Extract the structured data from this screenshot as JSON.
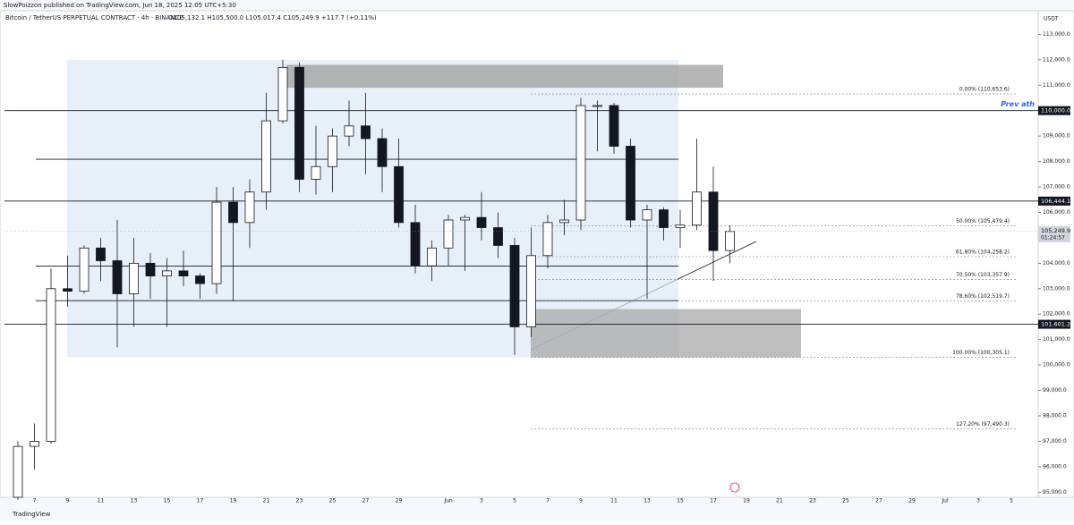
{
  "header": {
    "author_line": "SlowPoizzon published on TradingView.com, Jun 18, 2025 12:05 UTC+5:30",
    "footer": "TradingView"
  },
  "chart_data": {
    "type": "candlestick",
    "title": "Bitcoin / TetherUS PERPETUAL CONTRACT · 4h · BINANCE",
    "ohlc_text": "O105,132.1 H105,500.0 L105,017.4 C105,249.9 +117.7 (+0.11%)",
    "currency": "USDT",
    "categories": [
      null,
      "7",
      null,
      "9",
      null,
      "11",
      null,
      "13",
      null,
      "15",
      null,
      "17",
      null,
      "19",
      null,
      "21",
      null,
      "23",
      null,
      "25",
      null,
      "27",
      null,
      "29",
      null,
      null,
      "Jun",
      null,
      "3",
      null,
      "5",
      null,
      "7",
      null,
      "9",
      null,
      "11",
      null,
      "13",
      null,
      "15",
      null,
      "17",
      null,
      "19",
      null,
      "21",
      null,
      "23",
      null,
      "25",
      null,
      "27",
      null,
      "29",
      null,
      "Jul",
      null,
      "3",
      null,
      "5"
    ],
    "open": [
      94800,
      96800,
      97000,
      103000,
      102900,
      104600,
      104100,
      102800,
      104000,
      103500,
      103700,
      103500,
      103200,
      106400,
      105600,
      106800,
      109600,
      111700,
      107300,
      107800,
      109000,
      109400,
      108900,
      107800,
      105600,
      103900,
      104600,
      105700,
      105800,
      105400,
      104700,
      101500,
      104300,
      105600,
      105700,
      110200,
      110200,
      108600,
      105700,
      106100,
      105400,
      105500,
      106800,
      104500,
      null,
      null,
      null,
      null,
      null,
      null,
      null,
      null,
      null,
      null,
      null,
      null,
      null,
      null,
      null,
      null,
      null
    ],
    "high": [
      97000,
      97700,
      103800,
      104300,
      104700,
      105000,
      105700,
      105000,
      104400,
      104200,
      104500,
      103600,
      107000,
      107000,
      107300,
      110700,
      112000,
      111900,
      109400,
      109300,
      110400,
      110700,
      109300,
      108900,
      106300,
      104900,
      105900,
      105900,
      106800,
      106000,
      105000,
      105400,
      105900,
      106500,
      110500,
      110400,
      110300,
      108900,
      106300,
      106200,
      106100,
      108900,
      107800,
      105500,
      null,
      null,
      null,
      null,
      null,
      null,
      null,
      null,
      null,
      null,
      null,
      null,
      null,
      null,
      null,
      null,
      null
    ],
    "low": [
      94700,
      95900,
      96900,
      102300,
      102800,
      103300,
      100700,
      101500,
      102600,
      101500,
      103100,
      102600,
      102800,
      102500,
      104600,
      106100,
      109500,
      106800,
      106700,
      106800,
      108600,
      107500,
      106800,
      105400,
      103600,
      103300,
      103900,
      103700,
      104900,
      104200,
      100400,
      101100,
      103800,
      105100,
      105300,
      108400,
      108300,
      105400,
      102600,
      104900,
      104600,
      105300,
      103300,
      104000,
      null,
      null,
      null,
      null,
      null,
      null,
      null,
      null,
      null,
      null,
      null,
      null,
      null,
      null,
      null,
      null,
      null
    ],
    "close": [
      96800,
      97000,
      103000,
      102900,
      104600,
      104100,
      102800,
      104000,
      103500,
      103700,
      103500,
      103200,
      106400,
      105600,
      106800,
      109600,
      111700,
      107300,
      107800,
      109000,
      109400,
      108900,
      107800,
      105600,
      103900,
      104600,
      105700,
      105800,
      105400,
      104700,
      101500,
      104300,
      105600,
      105700,
      110200,
      110200,
      108600,
      105700,
      106100,
      105400,
      105500,
      106800,
      104500,
      105250,
      null,
      null,
      null,
      null,
      null,
      null,
      null,
      null,
      null,
      null,
      null,
      null,
      null,
      null,
      null,
      null,
      null
    ],
    "ylim": [
      94800,
      113400
    ],
    "yticks": [
      {
        "value": 113000,
        "label": "113,000.0"
      },
      {
        "value": 112000,
        "label": "112,000.0"
      },
      {
        "value": 111000,
        "label": "111,000.0"
      },
      {
        "value": 109000,
        "label": "109,000.0"
      },
      {
        "value": 108000,
        "label": "108,000.0"
      },
      {
        "value": 107000,
        "label": "107,000.0"
      },
      {
        "value": 106000,
        "label": "106,000.0"
      },
      {
        "value": 104000,
        "label": "104,000.0"
      },
      {
        "value": 103000,
        "label": "103,000.0"
      },
      {
        "value": 102000,
        "label": "102,000.0"
      },
      {
        "value": 101000,
        "label": "101,000.0"
      },
      {
        "value": 100000,
        "label": "100,000.0"
      },
      {
        "value": 99000,
        "label": "99,000.0"
      },
      {
        "value": 98000,
        "label": "98,000.0"
      },
      {
        "value": 97000,
        "label": "97,000.0"
      },
      {
        "value": 96000,
        "label": "96,000.0"
      },
      {
        "value": 95000,
        "label": "95,000.0"
      }
    ],
    "levels": [
      {
        "value": 110000,
        "label": "110,000.0"
      },
      {
        "value": 106444.1,
        "label": "106,444.1"
      },
      {
        "value": 101601.2,
        "label": "101,601.2"
      },
      {
        "value": 108090
      },
      {
        "value": 103890
      },
      {
        "value": 102530
      }
    ],
    "last_price": {
      "value": 105249.9,
      "label": "105,249.9",
      "countdown": "01:24:57"
    },
    "fib": [
      {
        "value": 110653.6,
        "label": "0.00% (110,653.6)"
      },
      {
        "value": 105479.4,
        "label": "50.00% (105,479.4)"
      },
      {
        "value": 104258.2,
        "label": "61.80% (104,258.2)"
      },
      {
        "value": 103357.9,
        "label": "70.50% (103,357.9)"
      },
      {
        "value": 102519.7,
        "label": "78.60% (102,519.7)"
      },
      {
        "value": 100305.1,
        "label": "100.00% (100,305.1)"
      },
      {
        "value": 97490.3,
        "label": "127.20% (97,490.3)"
      }
    ],
    "annotation": "Prev ath",
    "zones": [
      {
        "top": 112000,
        "bottom": 100300,
        "color": "#dde8f5"
      },
      {
        "top": 111800,
        "bottom": 110900,
        "color": "#9e9e9e"
      },
      {
        "top": 102200,
        "bottom": 100300,
        "color": "#a8a8a8"
      }
    ]
  }
}
